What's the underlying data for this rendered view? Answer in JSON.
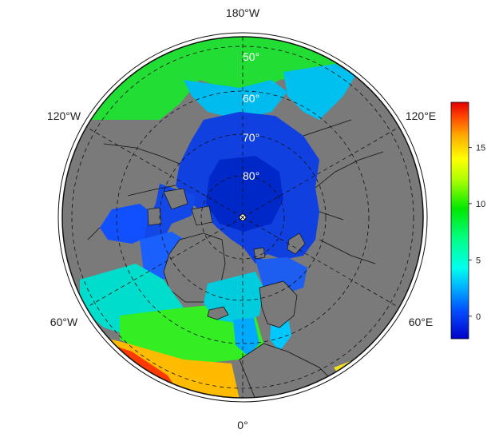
{
  "map": {
    "projection": "north polar stereographic",
    "land_color": "#7a7a7a",
    "longitude_labels": {
      "top": "180°W",
      "upper_left": "120°W",
      "upper_right": "120°E",
      "lower_left": "60°W",
      "lower_right": "60°E",
      "bottom": "0°"
    },
    "latitude_labels": [
      "50°",
      "60°",
      "70°",
      "80°"
    ]
  },
  "colorbar": {
    "ticks": [
      "0",
      "5",
      "10",
      "15"
    ],
    "min": -2,
    "max": 19,
    "colors": [
      "#0000c8",
      "#0050ff",
      "#00c8ff",
      "#00ffcc",
      "#00ee33",
      "#66ff00",
      "#ffff00",
      "#ffaa00",
      "#ff5000",
      "#e00000"
    ]
  }
}
